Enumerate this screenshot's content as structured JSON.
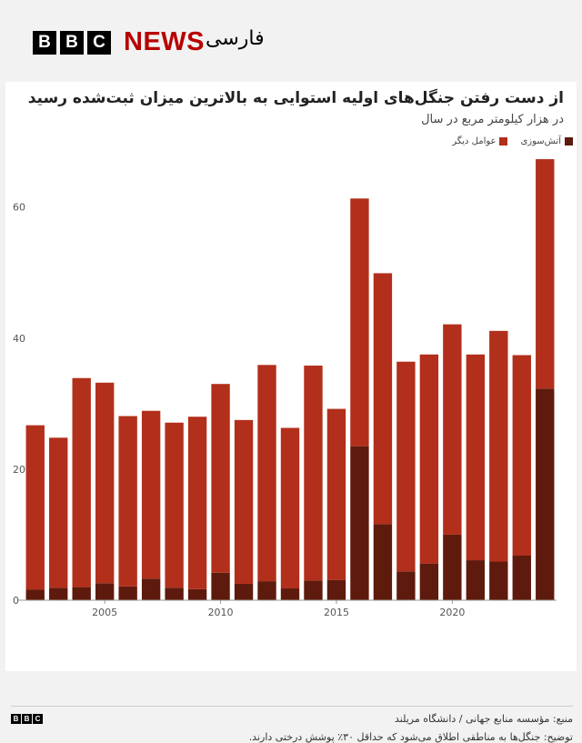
{
  "brand": {
    "blocks": [
      "B",
      "B",
      "C"
    ],
    "news": "NEWS",
    "language": "فارسی"
  },
  "chart": {
    "title": "از دست رفتن جنگل‌های اولیه استوایی به بالاترین میزان ثبت‌شده رسید",
    "subtitle": "در هزار کیلومتر مربع در سال",
    "source": "منبع: مؤسسه منابع جهانی / دانشگاه مریلند",
    "note": "توضیح: جنگل‌ها به مناطقی اطلاق می‌شود که حداقل ۳۰٪ پوشش درختی دارند."
  },
  "legend": [
    {
      "label": "آتش‌سوزی",
      "color": "#5e1a0c"
    },
    {
      "label": "عوامل دیگر",
      "color": "#b22f1b"
    }
  ],
  "chart_data": {
    "type": "bar",
    "stacked": true,
    "x": [
      2002,
      2003,
      2004,
      2005,
      2006,
      2007,
      2008,
      2009,
      2010,
      2011,
      2012,
      2013,
      2014,
      2015,
      2016,
      2017,
      2018,
      2019,
      2020,
      2021,
      2022,
      2023,
      2024
    ],
    "series": [
      {
        "name": "آتش‌سوزی",
        "color": "#5e1a0c",
        "values": [
          1.6,
          1.9,
          2.0,
          2.6,
          2.1,
          3.3,
          1.9,
          1.7,
          4.2,
          2.5,
          2.9,
          1.8,
          3.0,
          3.1,
          23.5,
          11.6,
          4.4,
          5.6,
          10.0,
          6.1,
          5.9,
          6.8,
          32.3
        ]
      },
      {
        "name": "عوامل دیگر",
        "color": "#b22f1b",
        "values": [
          25.1,
          22.9,
          31.9,
          30.6,
          26.0,
          25.6,
          25.2,
          26.3,
          28.8,
          25.0,
          33.0,
          24.5,
          32.8,
          26.1,
          37.8,
          38.3,
          32.0,
          31.9,
          32.1,
          31.4,
          35.2,
          30.6,
          35.0
        ]
      }
    ],
    "xticks": [
      2005,
      2010,
      2015,
      2020
    ],
    "yticks": [
      0,
      20,
      40,
      60
    ],
    "ylim": [
      0,
      68
    ],
    "grid": false,
    "legend_position": "top-right"
  }
}
